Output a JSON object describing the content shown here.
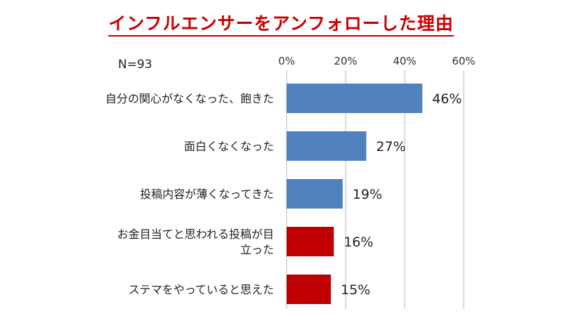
{
  "title": "インフルエンサーをアンフォローした理由",
  "sample_size": "N=93",
  "colors": {
    "title": "#cc0000",
    "blue": "#4f81bd",
    "red": "#c00000",
    "grid": "#b8b8b8"
  },
  "chart_data": {
    "type": "bar",
    "orientation": "horizontal",
    "title": "インフルエンサーをアンフォローした理由",
    "categories": [
      "自分の関心がなくなった、飽きた",
      "面白くなくなった",
      "投稿内容が薄くなってきた",
      "お金目当てと思われる投稿が目立った",
      "ステマをやっていると思えた"
    ],
    "category_lines": [
      [
        "自分の関心がなくなった、飽きた"
      ],
      [
        "面白くなくなった"
      ],
      [
        "投稿内容が薄くなってきた"
      ],
      [
        "お金目当てと思われる投稿が目",
        "立った"
      ],
      [
        "ステマをやっていると思えた"
      ]
    ],
    "values": [
      46,
      27,
      19,
      16,
      15
    ],
    "data_labels": [
      "46%",
      "27%",
      "19%",
      "16%",
      "15%"
    ],
    "bar_colors": [
      "#4f81bd",
      "#4f81bd",
      "#4f81bd",
      "#c00000",
      "#c00000"
    ],
    "xlim": [
      0,
      60
    ],
    "xticks": [
      0,
      20,
      40,
      60
    ],
    "xtick_labels": [
      "0%",
      "20%",
      "40%",
      "60%"
    ],
    "axis_position": "top",
    "grid": true
  }
}
